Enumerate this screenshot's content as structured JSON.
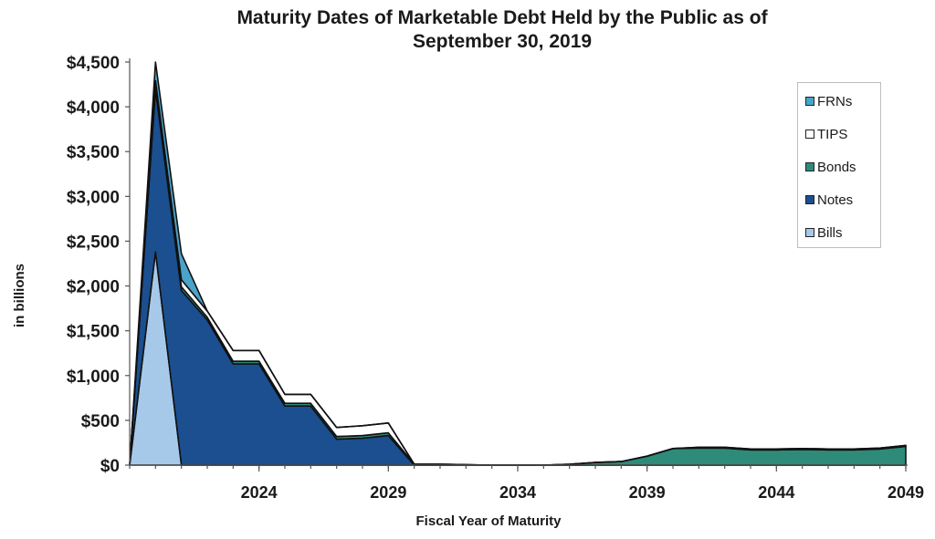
{
  "chart_data": {
    "type": "area",
    "title": "Maturity Dates of Marketable Debt Held by the Public as of September 30, 2019",
    "title_lines": [
      "Maturity Dates of Marketable Debt Held by the Public as of",
      "September 30, 2019"
    ],
    "xlabel": "Fiscal Year of Maturity",
    "ylabel": "in billions",
    "xlim": [
      2019,
      2049
    ],
    "ylim": [
      0,
      4500
    ],
    "x_ticks": [
      2024,
      2029,
      2034,
      2039,
      2044,
      2049
    ],
    "y_ticks": [
      0,
      500,
      1000,
      1500,
      2000,
      2500,
      3000,
      3500,
      4000,
      4500
    ],
    "y_tick_labels": [
      "$0",
      "$500",
      "$1,000",
      "$1,500",
      "$2,000",
      "$2,500",
      "$3,000",
      "$3,500",
      "$4,000",
      "$4,500"
    ],
    "grid": false,
    "legend_position": "top-right",
    "stacked": true,
    "x": [
      2019,
      2020,
      2021,
      2022,
      2023,
      2024,
      2025,
      2026,
      2027,
      2028,
      2029,
      2030,
      2031,
      2032,
      2033,
      2034,
      2035,
      2036,
      2037,
      2038,
      2039,
      2040,
      2041,
      2042,
      2043,
      2044,
      2045,
      2046,
      2047,
      2048,
      2049
    ],
    "series": [
      {
        "name": "Bills",
        "color": "#a7c9e9",
        "values": [
          0,
          2380,
          0,
          0,
          0,
          0,
          0,
          0,
          0,
          0,
          0,
          0,
          0,
          0,
          0,
          0,
          0,
          0,
          0,
          0,
          0,
          0,
          0,
          0,
          0,
          0,
          0,
          0,
          0,
          0,
          0
        ]
      },
      {
        "name": "Notes",
        "color": "#1b4f8f",
        "values": [
          0,
          1820,
          1950,
          1620,
          1130,
          1130,
          660,
          660,
          290,
          300,
          330,
          0,
          0,
          0,
          0,
          0,
          0,
          0,
          0,
          0,
          0,
          0,
          0,
          0,
          0,
          0,
          0,
          0,
          0,
          0,
          0
        ]
      },
      {
        "name": "Bonds",
        "color": "#2e8b7a",
        "values": [
          0,
          30,
          40,
          30,
          30,
          30,
          30,
          30,
          30,
          30,
          30,
          10,
          10,
          5,
          0,
          0,
          0,
          10,
          30,
          40,
          100,
          185,
          190,
          190,
          170,
          170,
          175,
          170,
          170,
          180,
          210
        ]
      },
      {
        "name": "TIPS",
        "color": "#ffffff",
        "values": [
          0,
          60,
          80,
          70,
          120,
          120,
          100,
          100,
          100,
          110,
          110,
          0,
          0,
          0,
          0,
          0,
          0,
          0,
          0,
          0,
          0,
          0,
          10,
          10,
          10,
          10,
          10,
          10,
          10,
          10,
          10
        ]
      },
      {
        "name": "FRNs",
        "color": "#4aa3c9",
        "values": [
          0,
          210,
          290,
          0,
          0,
          0,
          0,
          0,
          0,
          0,
          0,
          0,
          0,
          0,
          0,
          0,
          0,
          0,
          0,
          0,
          0,
          0,
          0,
          0,
          0,
          0,
          0,
          0,
          0,
          0,
          0
        ]
      }
    ],
    "legend_order": [
      "FRNs",
      "TIPS",
      "Bonds",
      "Notes",
      "Bills"
    ]
  }
}
